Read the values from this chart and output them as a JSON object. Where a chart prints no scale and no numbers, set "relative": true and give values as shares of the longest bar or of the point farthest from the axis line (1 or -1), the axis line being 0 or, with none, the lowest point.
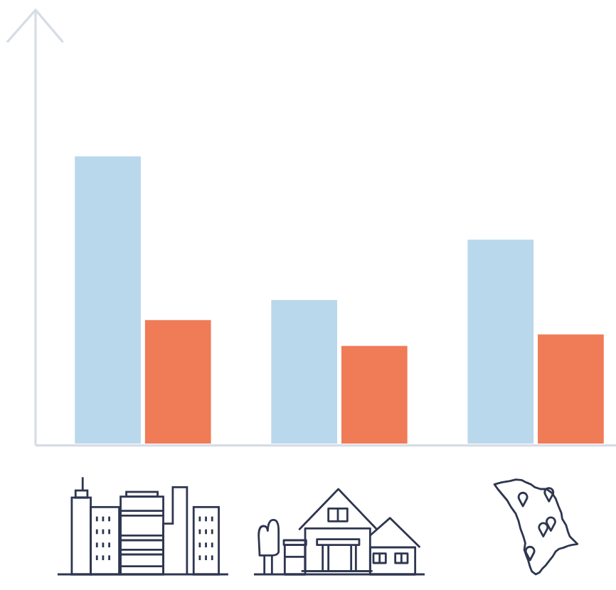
{
  "chart_data": {
    "type": "bar",
    "categories": [
      null,
      null,
      null
    ],
    "relative": true,
    "series": [
      {
        "color": "#bad8ec",
        "values": [
          1,
          0.5,
          0.71
        ]
      },
      {
        "color": "#f07b57",
        "values": [
          0.43,
          0.34,
          0.38
        ]
      }
    ]
  }
}
